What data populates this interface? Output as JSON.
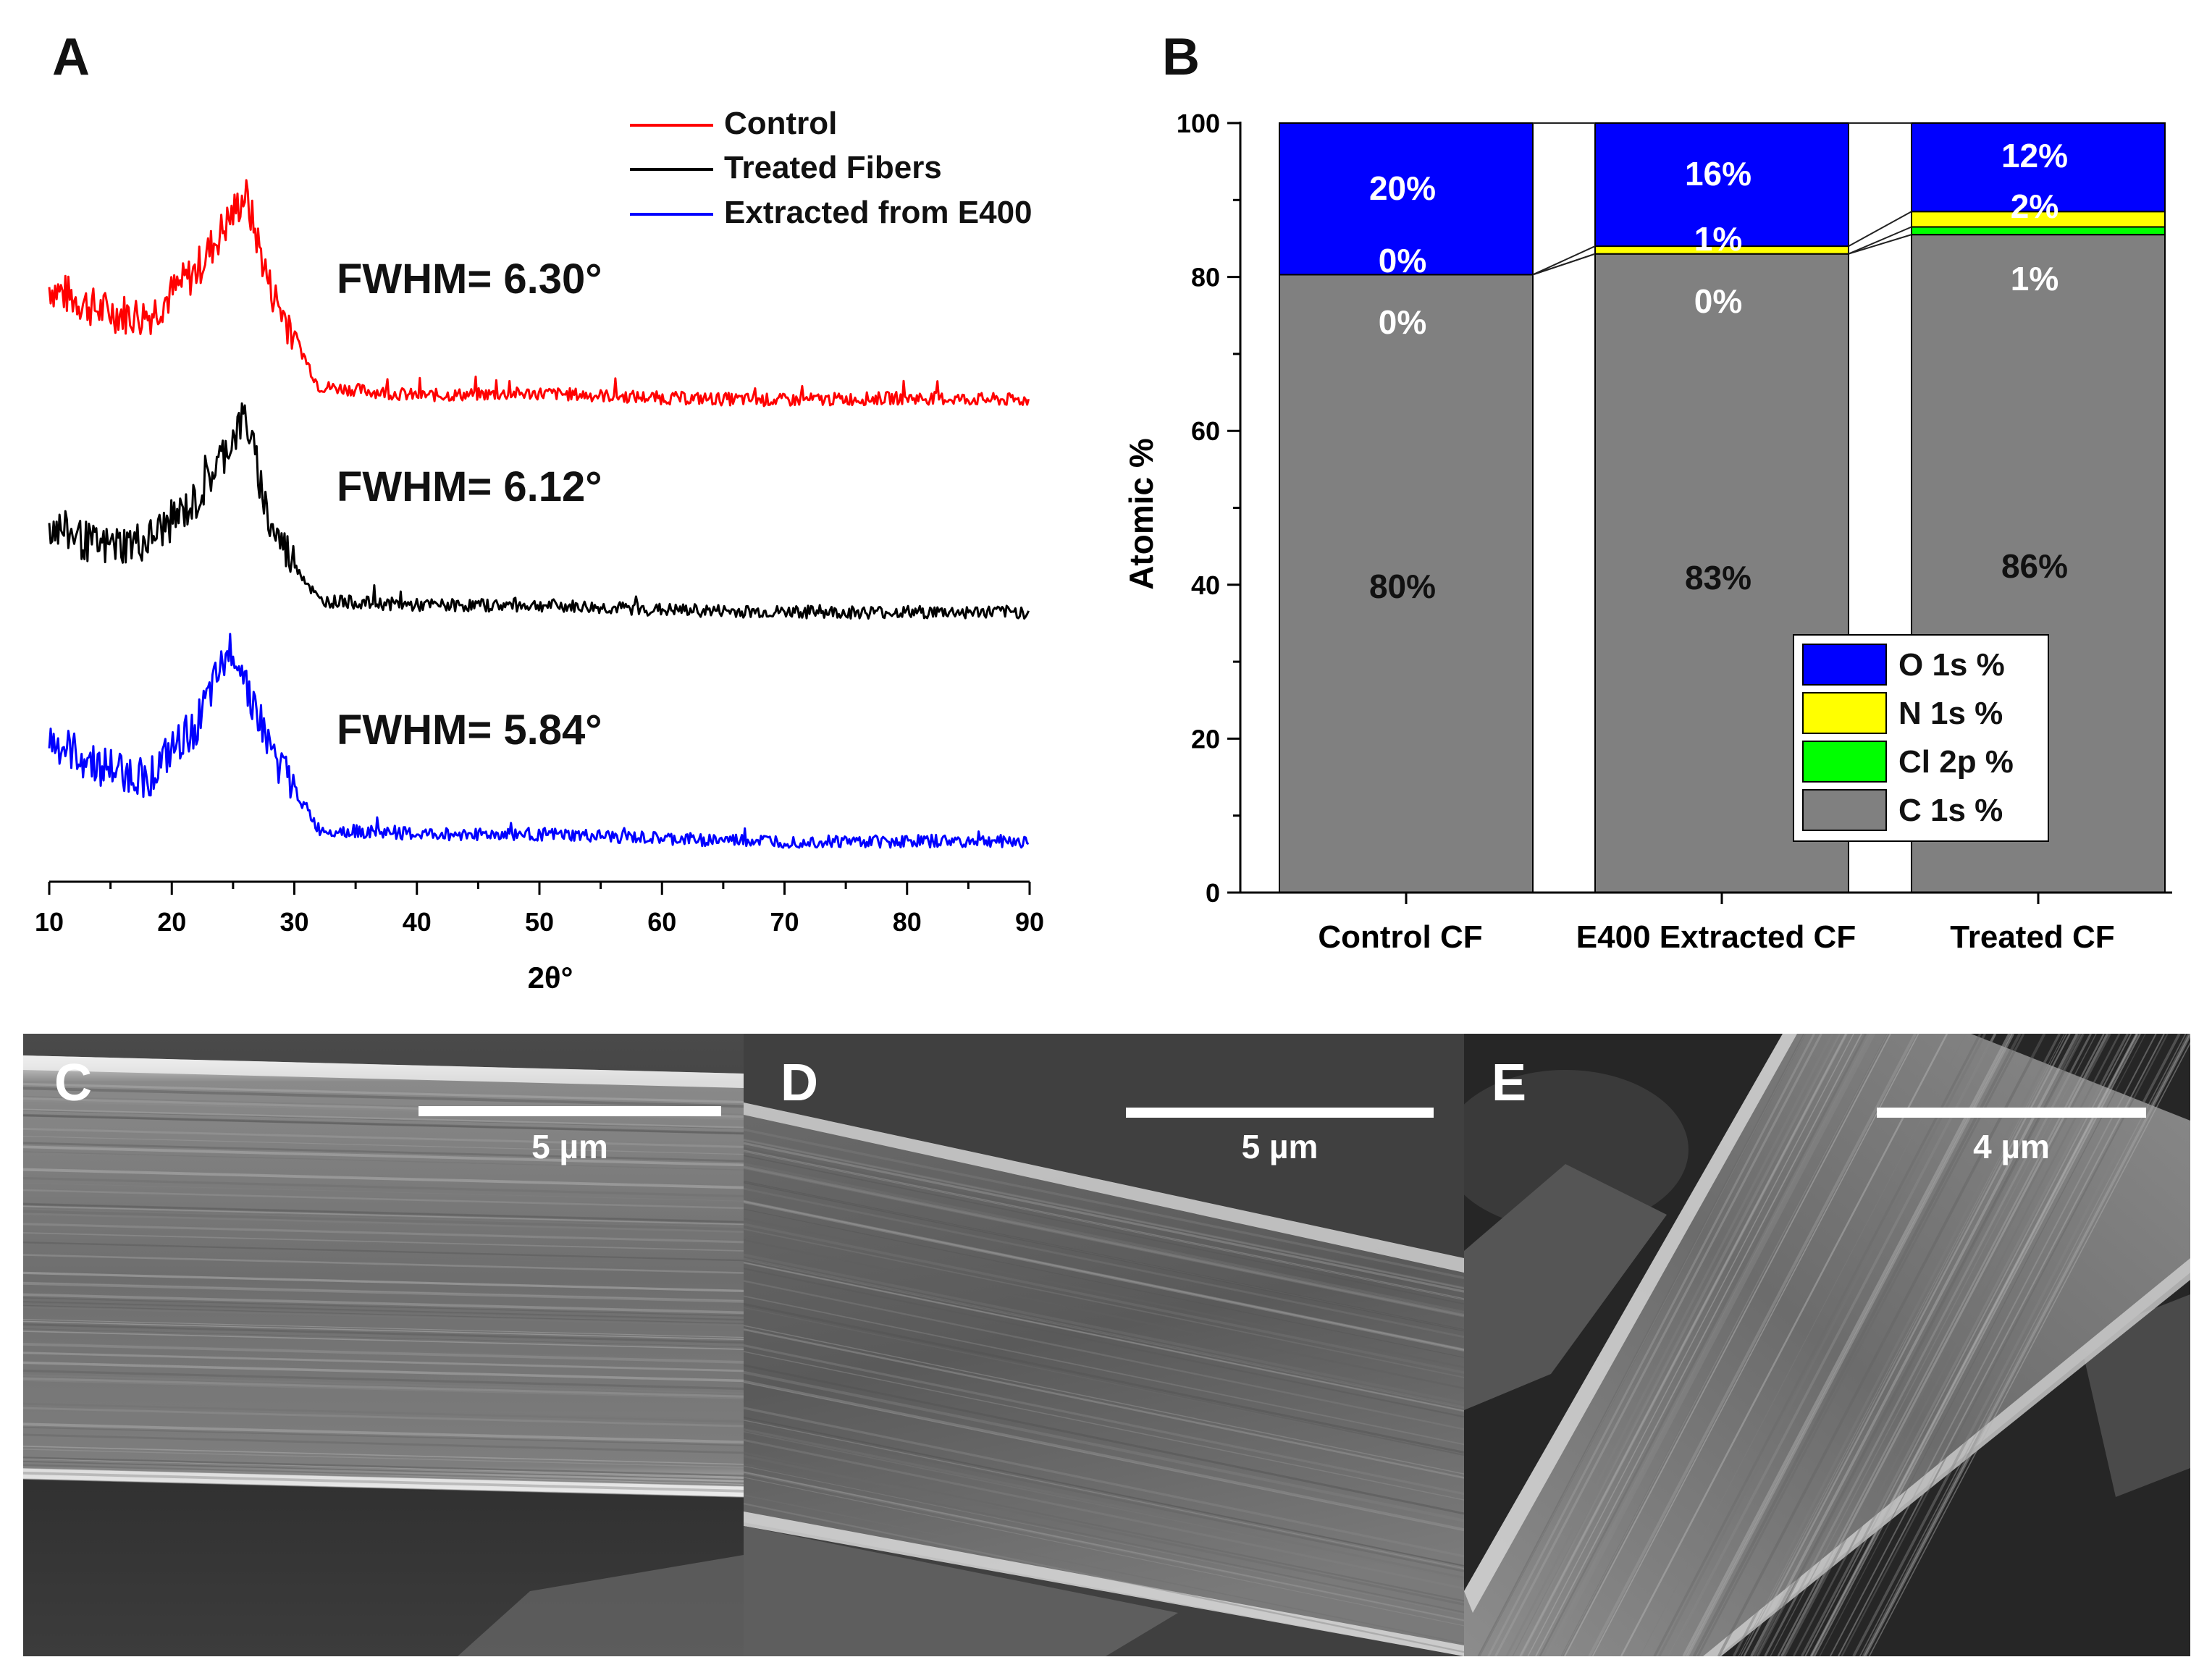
{
  "panels": {
    "a": {
      "letter": "A"
    },
    "b": {
      "letter": "B"
    },
    "c": {
      "letter": "C",
      "scale_label": "5 µm"
    },
    "d": {
      "letter": "D",
      "scale_label": "5 µm"
    },
    "e": {
      "letter": "E",
      "scale_label": "4 µm"
    }
  },
  "chart_data": [
    {
      "type": "line",
      "panel": "A",
      "xlabel": "2θ°",
      "ylabel": "",
      "xlim": [
        10,
        90
      ],
      "xticks": [
        "10",
        "20",
        "30",
        "40",
        "50",
        "60",
        "70",
        "80",
        "90"
      ],
      "legend": [
        "Control",
        "Treated Fibers",
        "Extracted from E400"
      ],
      "legend_position": "top-right",
      "colors": [
        "#ff0000",
        "#000000",
        "#0000ff"
      ],
      "annotations": [
        "FWHM= 6.30°",
        "FWHM= 6.12°",
        "FWHM= 5.84°"
      ],
      "series": [
        {
          "name": "Control",
          "peak_x": 26,
          "x": [
            10,
            14,
            18,
            22,
            26,
            28,
            32,
            40,
            50,
            60,
            70,
            80,
            90
          ],
          "y": [
            0.55,
            0.45,
            0.42,
            0.62,
            0.95,
            0.55,
            0.12,
            0.08,
            0.09,
            0.07,
            0.06,
            0.07,
            0.06
          ]
        },
        {
          "name": "Treated Fibers",
          "peak_x": 26,
          "x": [
            10,
            14,
            18,
            22,
            26,
            28,
            32,
            40,
            50,
            60,
            70,
            80,
            90
          ],
          "y": [
            0.45,
            0.35,
            0.38,
            0.55,
            0.92,
            0.45,
            0.12,
            0.1,
            0.1,
            0.08,
            0.07,
            0.07,
            0.07
          ]
        },
        {
          "name": "Extracted from E400",
          "peak_x": 25,
          "x": [
            10,
            14,
            18,
            22,
            25,
            28,
            32,
            40,
            50,
            60,
            70,
            80,
            90
          ],
          "y": [
            0.48,
            0.38,
            0.32,
            0.55,
            0.9,
            0.45,
            0.1,
            0.08,
            0.08,
            0.06,
            0.05,
            0.05,
            0.05
          ]
        }
      ]
    },
    {
      "type": "bar",
      "panel": "B",
      "stacked": true,
      "ylabel": "Atomic %",
      "ylim": [
        0,
        100
      ],
      "yticks": [
        "0",
        "20",
        "40",
        "60",
        "80",
        "100"
      ],
      "categories": [
        "Control CF",
        "E400 Extracted CF",
        "Treated CF"
      ],
      "legend": [
        "O 1s %",
        "N 1s %",
        "Cl 2p %",
        "C 1s %"
      ],
      "legend_position": "bottom-right",
      "series": [
        {
          "name": "C 1s %",
          "color": "#808080",
          "values": [
            80.3,
            83.0,
            85.5
          ],
          "labels": [
            "80%",
            "83%",
            "86%"
          ]
        },
        {
          "name": "Cl 2p %",
          "color": "#00ff00",
          "values": [
            0.0,
            0.0,
            1.0
          ],
          "labels": [
            "0%",
            "0%",
            "1%"
          ]
        },
        {
          "name": "N 1s %",
          "color": "#ffff00",
          "values": [
            0.0,
            1.0,
            2.0
          ],
          "labels": [
            "0%",
            "1%",
            "2%"
          ]
        },
        {
          "name": "O 1s %",
          "color": "#0000ff",
          "values": [
            19.7,
            16.0,
            11.5
          ],
          "labels": [
            "20%",
            "16%",
            "12%"
          ]
        }
      ]
    }
  ]
}
